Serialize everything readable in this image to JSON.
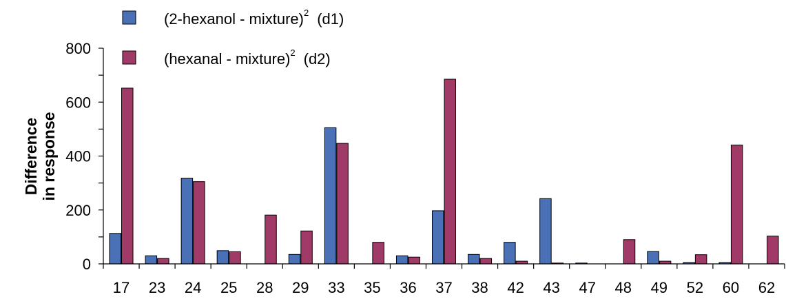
{
  "chart_data": {
    "type": "bar",
    "ylabel_lines": [
      "Difference",
      "in response"
    ],
    "ylim": [
      0,
      800
    ],
    "yticks": [
      0,
      200,
      400,
      600,
      800
    ],
    "grid": false,
    "legend_position": "top-left",
    "categories": [
      "17",
      "23",
      "24",
      "25",
      "28",
      "29",
      "33",
      "35",
      "36",
      "37",
      "38",
      "42",
      "43",
      "47",
      "48",
      "49",
      "52",
      "60",
      "62"
    ],
    "series": [
      {
        "legend": {
          "base": "(2-hexanol - mixture)",
          "sup": "2",
          "suffix": "(d1)"
        },
        "color": "#4A70B5",
        "values": [
          113,
          30,
          318,
          49,
          0,
          35,
          505,
          0,
          30,
          197,
          35,
          80,
          242,
          3,
          0,
          46,
          5,
          5,
          0
        ]
      },
      {
        "legend": {
          "base": "(hexanal - mixture)",
          "sup": "2",
          "suffix": "(d2)"
        },
        "color": "#A03A66",
        "values": [
          652,
          20,
          305,
          45,
          181,
          122,
          447,
          80,
          25,
          685,
          20,
          10,
          3,
          0,
          90,
          10,
          34,
          441,
          103
        ]
      }
    ]
  }
}
